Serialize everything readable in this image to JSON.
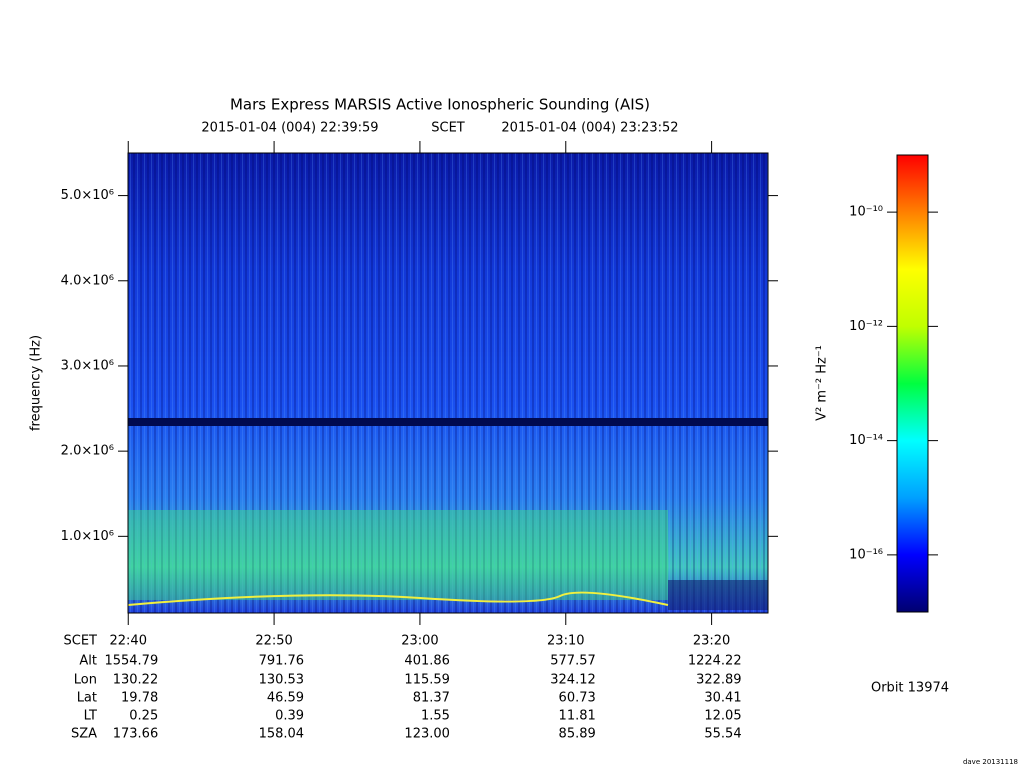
{
  "chart_data": {
    "type": "spectrogram",
    "title": "Mars Express MARSIS Active Ionospheric Sounding (AIS)",
    "subtitle": [
      "2015-01-04 (004) 22:39:59",
      "SCET",
      "2015-01-04 (004) 23:23:52"
    ],
    "ylabel": "frequency (Hz)",
    "ylim": [
      100000,
      5500000
    ],
    "yticks": [
      {
        "value": 1000000,
        "label": "1.0×10⁶"
      },
      {
        "value": 2000000,
        "label": "2.0×10⁶"
      },
      {
        "value": 3000000,
        "label": "3.0×10⁶"
      },
      {
        "value": 4000000,
        "label": "4.0×10⁶"
      },
      {
        "value": 5000000,
        "label": "5.0×10⁶"
      }
    ],
    "xlim": [
      "22:39:59",
      "23:23:52"
    ],
    "xticks": [
      "22:40",
      "22:50",
      "23:00",
      "23:10",
      "23:20"
    ],
    "colorbar": {
      "label": "V² m⁻² Hz⁻¹",
      "log": true,
      "zlim": [
        1e-17,
        1e-09
      ],
      "ticks": [
        {
          "value": 1e-10,
          "label": "10⁻¹⁰"
        },
        {
          "value": 1e-12,
          "label": "10⁻¹²"
        },
        {
          "value": 1e-14,
          "label": "10⁻¹⁴"
        },
        {
          "value": 1e-16,
          "label": "10⁻¹⁶"
        }
      ],
      "colors": [
        "#000070",
        "#0000ff",
        "#00a0ff",
        "#00ffff",
        "#00ff40",
        "#c0ff00",
        "#ffff00",
        "#ff8000",
        "#ff0000"
      ]
    },
    "ephemeris": {
      "time_label": "SCET",
      "labels": [
        "Alt",
        "Lon",
        "Lat",
        "LT",
        "SZA"
      ],
      "rows": [
        [
          "1554.79",
          "791.76",
          "401.86",
          "577.57",
          "1224.22"
        ],
        [
          "130.22",
          "130.53",
          "115.59",
          "324.12",
          "322.89"
        ],
        [
          "19.78",
          "46.59",
          "81.37",
          "60.73",
          "30.41"
        ],
        [
          "0.25",
          "0.39",
          "1.55",
          "11.81",
          "12.05"
        ],
        [
          "173.66",
          "158.04",
          "123.00",
          "85.89",
          "55.54"
        ]
      ]
    },
    "orbit": "Orbit 13974",
    "footer": "dave 20131118"
  }
}
